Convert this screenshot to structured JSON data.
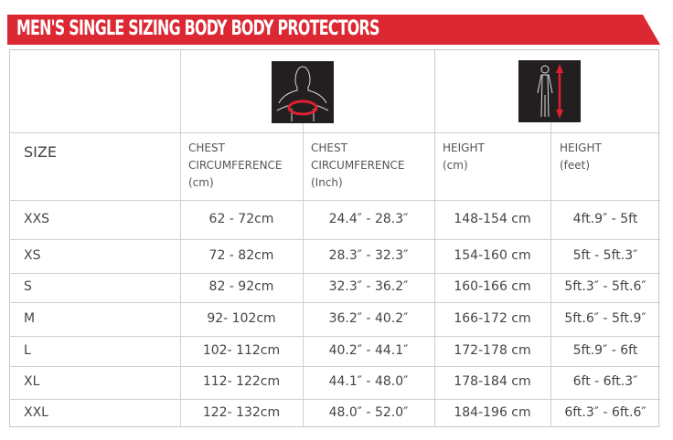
{
  "title": "MEN'S SINGLE SIZING BODY BODY PROTECTORS",
  "colors": {
    "banner": "#dc2833",
    "icon_bg": "#231f20",
    "icon_accent": "#e02030"
  },
  "icons": [
    "chest-measurement-icon",
    "height-measurement-icon"
  ],
  "headers": {
    "size": "SIZE",
    "chest_cm": [
      "CHEST",
      "CIRCUMFERENCE",
      "(cm)"
    ],
    "chest_in": [
      "CHEST",
      "CIRCUMFERENCE",
      "(Inch)"
    ],
    "height_cm": [
      "HEIGHT",
      "(cm)"
    ],
    "height_ft": [
      "HEIGHT",
      "(feet)"
    ]
  },
  "rows": [
    {
      "size": "XXS",
      "chest_cm": "62 - 72cm",
      "chest_in": "24.4″ - 28.3″",
      "height_cm": "148-154 cm",
      "height_ft": "4ft.9″ - 5ft"
    },
    {
      "size": "XS",
      "chest_cm": "72 - 82cm",
      "chest_in": "28.3″ - 32.3″",
      "height_cm": "154-160 cm",
      "height_ft": "5ft - 5ft.3″"
    },
    {
      "size": "S",
      "chest_cm": "82 - 92cm",
      "chest_in": "32.3″ - 36.2″",
      "height_cm": "160-166 cm",
      "height_ft": "5ft.3″ - 5ft.6″"
    },
    {
      "size": "M",
      "chest_cm": "92- 102cm",
      "chest_in": "36.2″ - 40.2″",
      "height_cm": "166-172 cm",
      "height_ft": "5ft.6″ - 5ft.9″"
    },
    {
      "size": "L",
      "chest_cm": "102- 112cm",
      "chest_in": "40.2″ - 44.1″",
      "height_cm": "172-178 cm",
      "height_ft": "5ft.9″ - 6ft"
    },
    {
      "size": "XL",
      "chest_cm": "112- 122cm",
      "chest_in": "44.1″ - 48.0″",
      "height_cm": "178-184 cm",
      "height_ft": "6ft - 6ft.3″"
    },
    {
      "size": "XXL",
      "chest_cm": "122- 132cm",
      "chest_in": "48.0″ - 52.0″",
      "height_cm": "184-196 cm",
      "height_ft": "6ft.3″ - 6ft.6″"
    }
  ]
}
